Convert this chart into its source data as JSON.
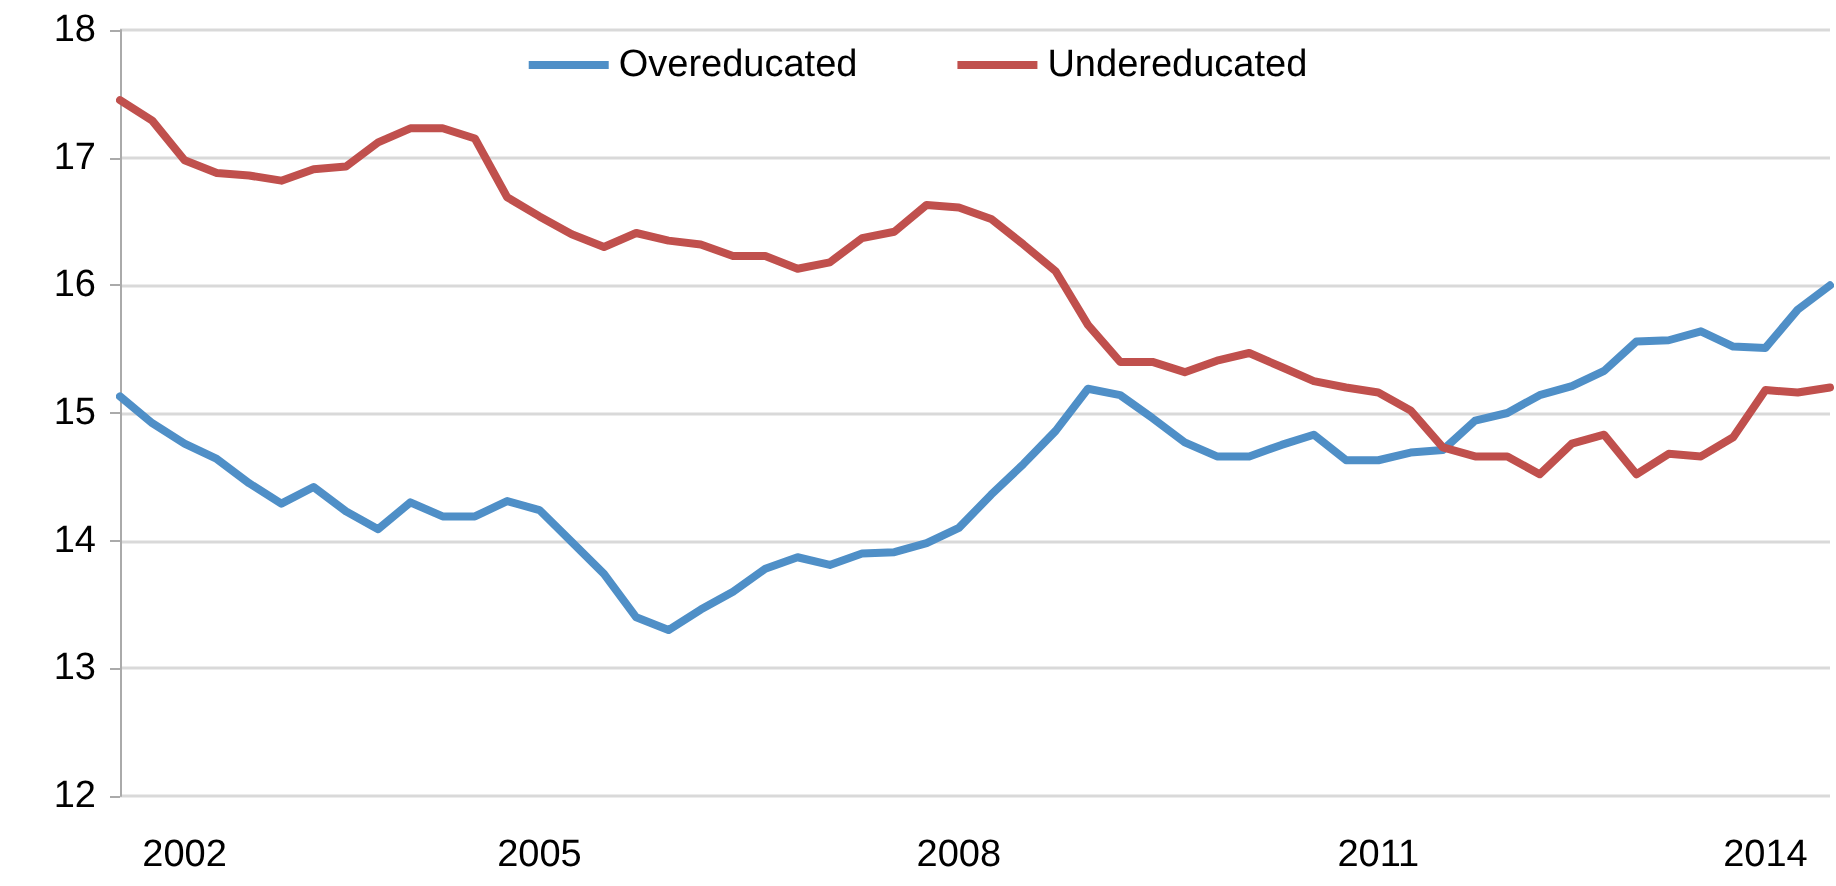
{
  "chart_data": {
    "type": "line",
    "categories": [
      null,
      null,
      "2002",
      null,
      null,
      null,
      null,
      null,
      null,
      null,
      null,
      null,
      null,
      "2005",
      null,
      null,
      null,
      null,
      null,
      null,
      null,
      null,
      null,
      null,
      null,
      null,
      "2008",
      null,
      null,
      null,
      null,
      null,
      null,
      null,
      null,
      null,
      null,
      null,
      null,
      "2011",
      null,
      null,
      null,
      null,
      null,
      null,
      null,
      null,
      null,
      null,
      null,
      "2014",
      null,
      null
    ],
    "series": [
      {
        "name": "Overeducated",
        "color": "#4f8fc7",
        "values": [
          15.13,
          14.92,
          14.76,
          14.64,
          14.45,
          14.29,
          14.42,
          14.23,
          14.09,
          14.3,
          14.19,
          14.19,
          14.31,
          14.24,
          13.99,
          13.74,
          13.4,
          13.3,
          13.46,
          13.6,
          13.78,
          13.87,
          13.81,
          13.9,
          13.91,
          13.98,
          14.1,
          14.36,
          14.6,
          14.86,
          15.19,
          15.14,
          14.96,
          14.77,
          14.66,
          14.66,
          14.75,
          14.83,
          14.63,
          14.63,
          14.69,
          14.71,
          14.94,
          15.0,
          15.14,
          15.21,
          15.33,
          15.56,
          15.57,
          15.64,
          15.52,
          15.51,
          15.81,
          16.0
        ]
      },
      {
        "name": "Undereducated",
        "color": "#c0504d",
        "values": [
          17.45,
          17.29,
          16.98,
          16.88,
          16.86,
          16.82,
          16.91,
          16.93,
          17.12,
          17.23,
          17.23,
          17.15,
          16.69,
          16.54,
          16.4,
          16.3,
          16.41,
          16.35,
          16.32,
          16.23,
          16.23,
          16.13,
          16.18,
          16.37,
          16.42,
          16.63,
          16.61,
          16.52,
          16.32,
          16.11,
          15.69,
          15.4,
          15.4,
          15.32,
          15.41,
          15.47,
          15.36,
          15.25,
          15.2,
          15.16,
          15.02,
          14.73,
          14.66,
          14.66,
          14.52,
          14.76,
          14.83,
          14.52,
          14.68,
          14.66,
          14.81,
          15.18,
          15.16,
          15.2
        ]
      }
    ],
    "ylim": [
      12,
      18
    ],
    "yticks": [
      12,
      13,
      14,
      15,
      16,
      17,
      18
    ],
    "grid": "y",
    "legend": "top",
    "line_style": "solid"
  }
}
